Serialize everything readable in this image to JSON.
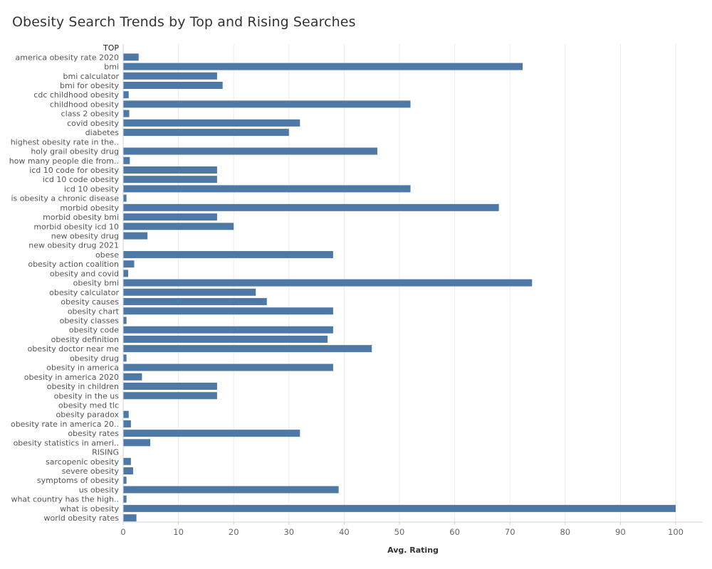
{
  "title": "Obesity Search Trends by Top and Rising Searches",
  "chart_data": {
    "type": "bar",
    "orientation": "horizontal",
    "bar_color": "#4e79a7",
    "xlabel": "Avg. Rating",
    "xlim": [
      0,
      105
    ],
    "xticks": [
      0,
      10,
      20,
      30,
      40,
      50,
      60,
      70,
      80,
      90,
      100
    ],
    "grid": "vertical",
    "rows": [
      {
        "kind": "header",
        "label": "TOP"
      },
      {
        "kind": "bar",
        "label": "america obesity rate 2020",
        "value": 2.8
      },
      {
        "kind": "bar",
        "label": "bmi",
        "value": 72.3
      },
      {
        "kind": "bar",
        "label": "bmi calculator",
        "value": 17
      },
      {
        "kind": "bar",
        "label": "bmi for obesity",
        "value": 18
      },
      {
        "kind": "bar",
        "label": "cdc childhood obesity",
        "value": 1
      },
      {
        "kind": "bar",
        "label": "childhood obesity",
        "value": 52
      },
      {
        "kind": "bar",
        "label": "class 2 obesity",
        "value": 1.1
      },
      {
        "kind": "bar",
        "label": "covid obesity",
        "value": 32
      },
      {
        "kind": "bar",
        "label": "diabetes",
        "value": 30
      },
      {
        "kind": "bar",
        "label": "highest obesity rate in the..",
        "value": 0
      },
      {
        "kind": "bar",
        "label": "holy grail obesity drug",
        "value": 46
      },
      {
        "kind": "bar",
        "label": "how many people die from..",
        "value": 1.2
      },
      {
        "kind": "bar",
        "label": "icd 10 code for obesity",
        "value": 17
      },
      {
        "kind": "bar",
        "label": "icd 10 code obesity",
        "value": 17
      },
      {
        "kind": "bar",
        "label": "icd 10 obesity",
        "value": 52
      },
      {
        "kind": "bar",
        "label": "is obesity a chronic disease",
        "value": 0.6
      },
      {
        "kind": "bar",
        "label": "morbid obesity",
        "value": 68
      },
      {
        "kind": "bar",
        "label": "morbid obesity bmi",
        "value": 17
      },
      {
        "kind": "bar",
        "label": "morbid obesity icd 10",
        "value": 20
      },
      {
        "kind": "bar",
        "label": "new obesity drug",
        "value": 4.4
      },
      {
        "kind": "bar",
        "label": "new obesity drug 2021",
        "value": 0
      },
      {
        "kind": "bar",
        "label": "obese",
        "value": 38
      },
      {
        "kind": "bar",
        "label": "obesity action coalition",
        "value": 2
      },
      {
        "kind": "bar",
        "label": "obesity and covid",
        "value": 0.9
      },
      {
        "kind": "bar",
        "label": "obesity bmi",
        "value": 74
      },
      {
        "kind": "bar",
        "label": "obesity calculator",
        "value": 24
      },
      {
        "kind": "bar",
        "label": "obesity causes",
        "value": 26
      },
      {
        "kind": "bar",
        "label": "obesity chart",
        "value": 38
      },
      {
        "kind": "bar",
        "label": "obesity classes",
        "value": 0.6
      },
      {
        "kind": "bar",
        "label": "obesity code",
        "value": 38
      },
      {
        "kind": "bar",
        "label": "obesity definition",
        "value": 37
      },
      {
        "kind": "bar",
        "label": "obesity doctor near me",
        "value": 45
      },
      {
        "kind": "bar",
        "label": "obesity drug",
        "value": 0.6
      },
      {
        "kind": "bar",
        "label": "obesity in america",
        "value": 38
      },
      {
        "kind": "bar",
        "label": "obesity in america 2020",
        "value": 3.4
      },
      {
        "kind": "bar",
        "label": "obesity in children",
        "value": 17
      },
      {
        "kind": "bar",
        "label": "obesity in the us",
        "value": 17
      },
      {
        "kind": "bar",
        "label": "obesity med tlc",
        "value": 0
      },
      {
        "kind": "bar",
        "label": "obesity paradox",
        "value": 1
      },
      {
        "kind": "bar",
        "label": "obesity rate in america 20..",
        "value": 1.4
      },
      {
        "kind": "bar",
        "label": "obesity rates",
        "value": 32
      },
      {
        "kind": "bar",
        "label": "obesity statistics in ameri..",
        "value": 4.9
      },
      {
        "kind": "header",
        "label": "RISING"
      },
      {
        "kind": "bar",
        "label": "sarcopenic obesity",
        "value": 1.4
      },
      {
        "kind": "bar",
        "label": "severe obesity",
        "value": 1.8
      },
      {
        "kind": "bar",
        "label": "symptoms of obesity",
        "value": 0.6
      },
      {
        "kind": "bar",
        "label": "us obesity",
        "value": 39
      },
      {
        "kind": "bar",
        "label": "what country has the high..",
        "value": 0.6
      },
      {
        "kind": "bar",
        "label": "what is obesity",
        "value": 100
      },
      {
        "kind": "bar",
        "label": "world obesity rates",
        "value": 2.4
      }
    ]
  }
}
